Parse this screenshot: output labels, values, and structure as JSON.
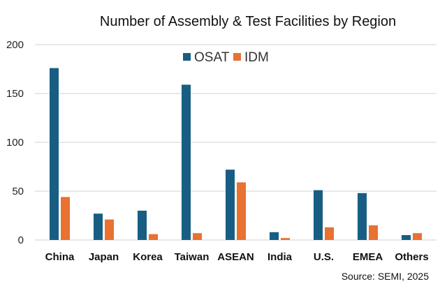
{
  "chart_data": {
    "type": "bar",
    "title": "Number of Assembly & Test Facilities by Region",
    "source": "Source: SEMI, 2025",
    "categories": [
      "China",
      "Japan",
      "Korea",
      "Taiwan",
      "ASEAN",
      "India",
      "U.S.",
      "EMEA",
      "Others"
    ],
    "series": [
      {
        "name": "OSAT",
        "color": "#175E82",
        "values": [
          176,
          27,
          30,
          159,
          72,
          8,
          51,
          48,
          5
        ]
      },
      {
        "name": "IDM",
        "color": "#E97132",
        "values": [
          44,
          21,
          6,
          7,
          59,
          2,
          13,
          15,
          7
        ]
      }
    ],
    "ylim": [
      0,
      200
    ],
    "yticks": [
      0,
      50,
      100,
      150,
      200
    ],
    "grid": true,
    "legend": "top-center",
    "xlabel": "",
    "ylabel": ""
  }
}
